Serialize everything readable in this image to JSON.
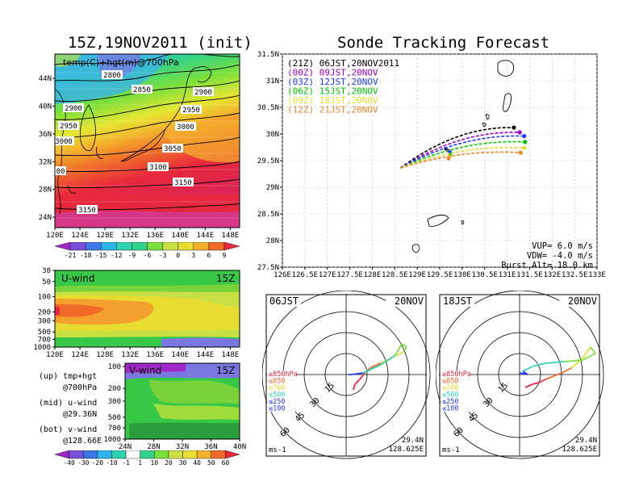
{
  "left_title": "15Z,19NOV2011 (init)",
  "right_title": "Sonde Tracking Forecast",
  "colors": {
    "t21z": "#000000",
    "t00z": "#a000c8",
    "t03z": "#1e3cff",
    "t06z": "#00c800",
    "t09z": "#e6dc32",
    "t12z": "#f08228"
  },
  "chart_data": [
    {
      "type": "heatmap",
      "panel": "map-700hPa",
      "title": "15Z,19NOV2011 (init)",
      "label": "temp(C)+hgt(m)@700hPa",
      "x_ticks": [
        "120E",
        "124E",
        "128E",
        "132E",
        "136E",
        "140E",
        "144E",
        "148E"
      ],
      "y_ticks": [
        "24N",
        "28N",
        "32N",
        "36N",
        "40N",
        "44N"
      ],
      "xlim": [
        120,
        149.5
      ],
      "ylim": [
        22.5,
        47.5
      ],
      "contour_labels": [
        "2800",
        "2850",
        "2900",
        "2900",
        "2950",
        "2950",
        "3000",
        "3000",
        "3050",
        "3100",
        "3150",
        "3150",
        "00"
      ],
      "colorbar_ticks": [
        "-21",
        "-18",
        "-15",
        "-12",
        "-9",
        "-6",
        "-3",
        "0",
        "3",
        "6",
        "9"
      ]
    },
    {
      "type": "heatmap",
      "panel": "u-wind",
      "title": "U-wind",
      "time_label": "15Z",
      "x_ticks": [
        "120E",
        "124E",
        "128E",
        "132E",
        "136E",
        "140E",
        "144E",
        "148E"
      ],
      "y_ticks": [
        "30",
        "50",
        "100",
        "200",
        "300",
        "500",
        "700",
        "1000"
      ]
    },
    {
      "type": "heatmap",
      "panel": "v-wind",
      "title": "V-wind",
      "time_label": "15Z",
      "x_ticks": [
        "24N",
        "28N",
        "32N",
        "36N",
        "40N"
      ],
      "y_ticks": [
        "100",
        "200",
        "300",
        "500",
        "700",
        "1000"
      ],
      "colorbar_ticks": [
        "-40",
        "-30",
        "-20",
        "-10",
        "-1",
        "1",
        "10",
        "20",
        "30",
        "40",
        "50",
        "60"
      ]
    },
    {
      "type": "line",
      "panel": "sonde-track",
      "x_ticks": [
        "126E",
        "126.5E",
        "127E",
        "127.5E",
        "128E",
        "128.5E",
        "129E",
        "129.5E",
        "130E",
        "130.5E",
        "131E",
        "131.5E",
        "132E",
        "132.5E",
        "133E"
      ],
      "y_ticks": [
        "27.5N",
        "28N",
        "28.5N",
        "29N",
        "29.5N",
        "30N",
        "30.5N",
        "31N",
        "31.5N"
      ],
      "xlim": [
        126,
        133
      ],
      "ylim": [
        27.5,
        31.5
      ],
      "launch": {
        "lon": 128.625,
        "lat": 29.36
      },
      "series": [
        {
          "name": "(21Z) 06JST,20NOV2011",
          "end_lon": 131.15,
          "end_lat": 30.12
        },
        {
          "name": "(00Z) 09JST,20NOV",
          "end_lon": 131.28,
          "end_lat": 30.03
        },
        {
          "name": "(03Z) 12JST,20NOV",
          "end_lon": 131.38,
          "end_lat": 29.96
        },
        {
          "name": "(06Z) 15JST,20NOV",
          "end_lon": 131.4,
          "end_lat": 29.85
        },
        {
          "name": "(09Z) 18JST,20NOV",
          "end_lon": 131.38,
          "end_lat": 29.74
        },
        {
          "name": "(12Z) 21JST,20NOV",
          "end_lon": 131.3,
          "end_lat": 29.65
        }
      ],
      "annotations": [
        "VUP= 6.0 m/s",
        "VDW= -4.0 m/s",
        "Burst Alt= 18.0 km"
      ]
    },
    {
      "type": "line",
      "panel": "hodograph-06JST",
      "title_left": "06JST",
      "title_right": "20NOV",
      "ring_labels": [
        "15",
        "30",
        "45",
        "60"
      ],
      "legend": [
        "≥850hPa",
        "≤850",
        "≤700",
        "≤500",
        "≤250",
        "≤100"
      ],
      "unit": "ms-1",
      "location": [
        "29.4N",
        "128.625E"
      ]
    },
    {
      "type": "line",
      "panel": "hodograph-18JST",
      "title_left": "18JST",
      "title_right": "20NOV",
      "ring_labels": [
        "15",
        "30",
        "45",
        "60"
      ],
      "legend": [
        "≥850hPa",
        "≤850",
        "≤700",
        "≤500",
        "≤250",
        "≤100"
      ],
      "unit": "ms-1",
      "location": [
        "29.4N",
        "128.625E"
      ]
    }
  ],
  "side_labels": {
    "up_line1": "(up) tmp+hgt",
    "up_line2": "@700hPa",
    "mid_line1": "(mid) u-wind",
    "mid_line2": "@29.36N",
    "bot_line1": "(bot) v-wind",
    "bot_line2": "@128.66E"
  }
}
